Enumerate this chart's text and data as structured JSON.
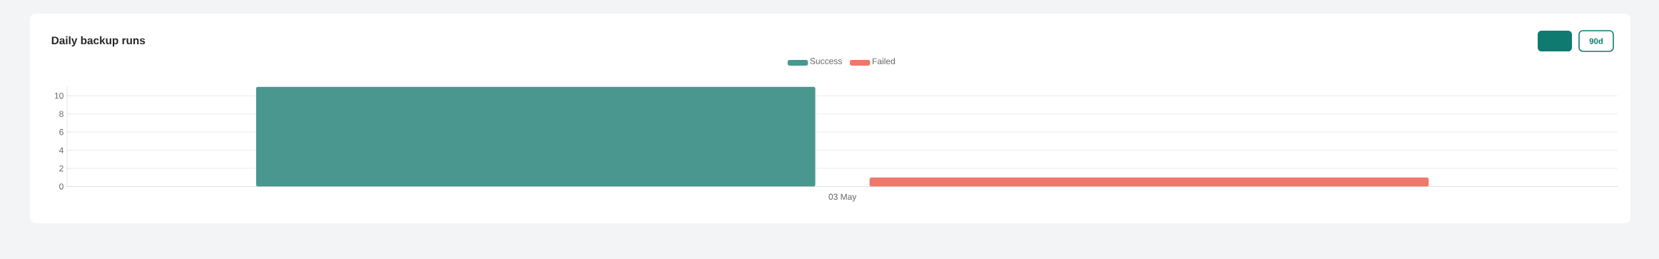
{
  "chart_data": {
    "type": "bar",
    "title": "Daily backup runs",
    "categories": [
      "03 May"
    ],
    "series": [
      {
        "name": "Success",
        "color": "#4a978f",
        "values": [
          11
        ]
      },
      {
        "name": "Failed",
        "color": "#ee786a",
        "values": [
          1
        ]
      }
    ],
    "ylim": [
      0,
      11
    ],
    "yticks": [
      0,
      2,
      4,
      6,
      8,
      10
    ],
    "grid": "y",
    "legend": "top",
    "annotations": [
      "90d"
    ]
  }
}
